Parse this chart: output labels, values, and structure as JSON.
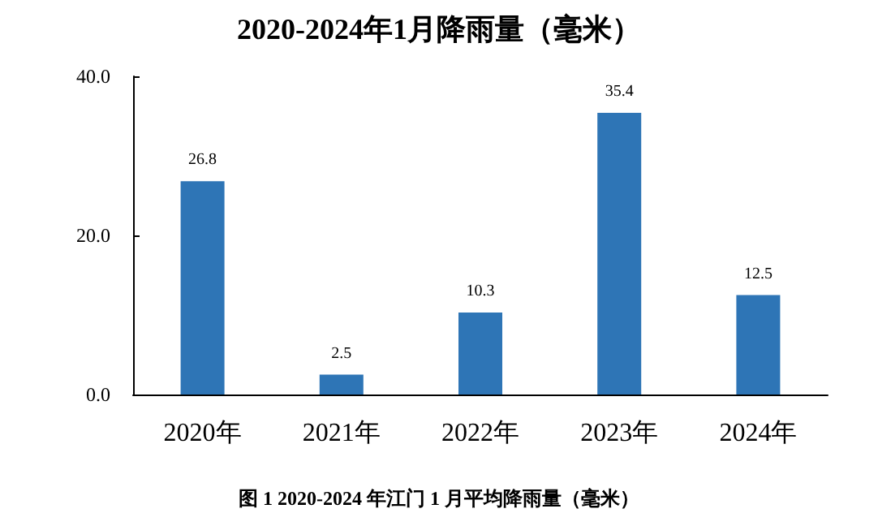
{
  "chart_data": {
    "type": "bar",
    "title": "2020-2024年1月降雨量（毫米）",
    "categories": [
      "2020年",
      "2021年",
      "2022年",
      "2023年",
      "2024年"
    ],
    "values": [
      26.8,
      2.5,
      10.3,
      35.4,
      12.5
    ],
    "color": "#2e75b6",
    "ylim": [
      0,
      40
    ],
    "yticks": [
      {
        "value": 0,
        "label": "0.0"
      },
      {
        "value": 20,
        "label": "20.0"
      },
      {
        "value": 40,
        "label": "40.0"
      }
    ],
    "data_labels": true,
    "grid": false,
    "annotations": [
      "图 1 2020-2024 年江门 1 月平均降雨量（毫米）"
    ]
  }
}
